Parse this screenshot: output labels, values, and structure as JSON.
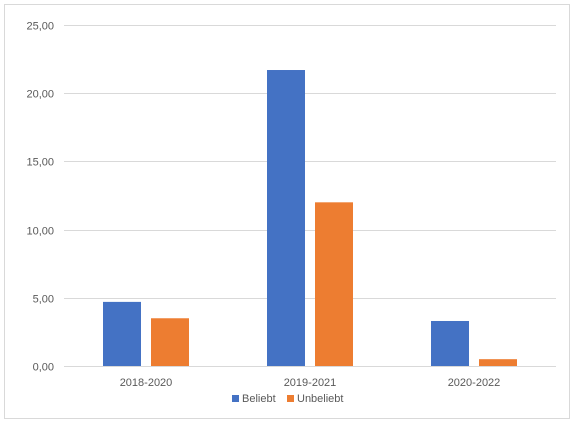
{
  "colors": {
    "series_beliebt": "#4472C4",
    "series_unbeliebt": "#ED7D31",
    "gridline": "#D9D9D9",
    "text": "#595959"
  },
  "chart_data": {
    "type": "bar",
    "title": "",
    "xlabel": "",
    "ylabel": "",
    "categories": [
      "2018-2020",
      "2019-2021",
      "2020-2022"
    ],
    "series": [
      {
        "name": "Beliebt",
        "values": [
          4.7,
          21.7,
          3.3
        ]
      },
      {
        "name": "Unbeliebt",
        "values": [
          3.5,
          12.0,
          0.5
        ]
      }
    ],
    "ylim": [
      0,
      25
    ],
    "y_ticks": [
      "0,00",
      "5,00",
      "10,00",
      "15,00",
      "20,00",
      "25,00"
    ],
    "grid": true,
    "legend_position": "bottom"
  }
}
